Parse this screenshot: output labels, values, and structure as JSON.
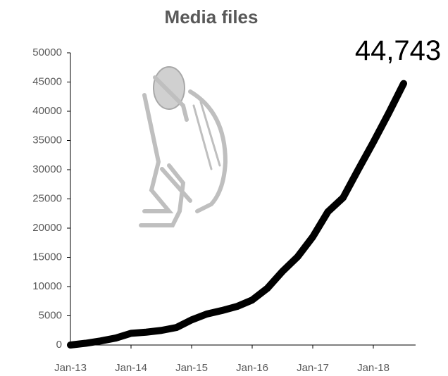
{
  "chart_data": {
    "type": "line",
    "title": "Media files",
    "categories": [
      "Jan-13",
      null,
      null,
      null,
      "Jan-14",
      null,
      null,
      null,
      "Jan-15",
      null,
      null,
      null,
      "Jan-16",
      null,
      null,
      null,
      "Jan-17",
      null,
      null,
      null,
      "Jan-18",
      null,
      null
    ],
    "values": [
      0,
      300,
      700,
      1200,
      2000,
      2200,
      2500,
      3000,
      4300,
      5300,
      5900,
      6600,
      7700,
      9700,
      12600,
      15100,
      18500,
      22800,
      25200,
      30000,
      34700,
      39600,
      44743
    ],
    "value_labels": [
      null,
      null,
      null,
      null,
      null,
      null,
      null,
      null,
      null,
      null,
      null,
      null,
      null,
      null,
      null,
      null,
      null,
      null,
      null,
      null,
      null,
      null,
      "44,743"
    ],
    "color": "#000000",
    "ylim": [
      0,
      50000
    ],
    "yticks": [
      0,
      5000,
      10000,
      15000,
      20000,
      25000,
      30000,
      35000,
      40000,
      45000,
      50000
    ],
    "grid": false
  }
}
